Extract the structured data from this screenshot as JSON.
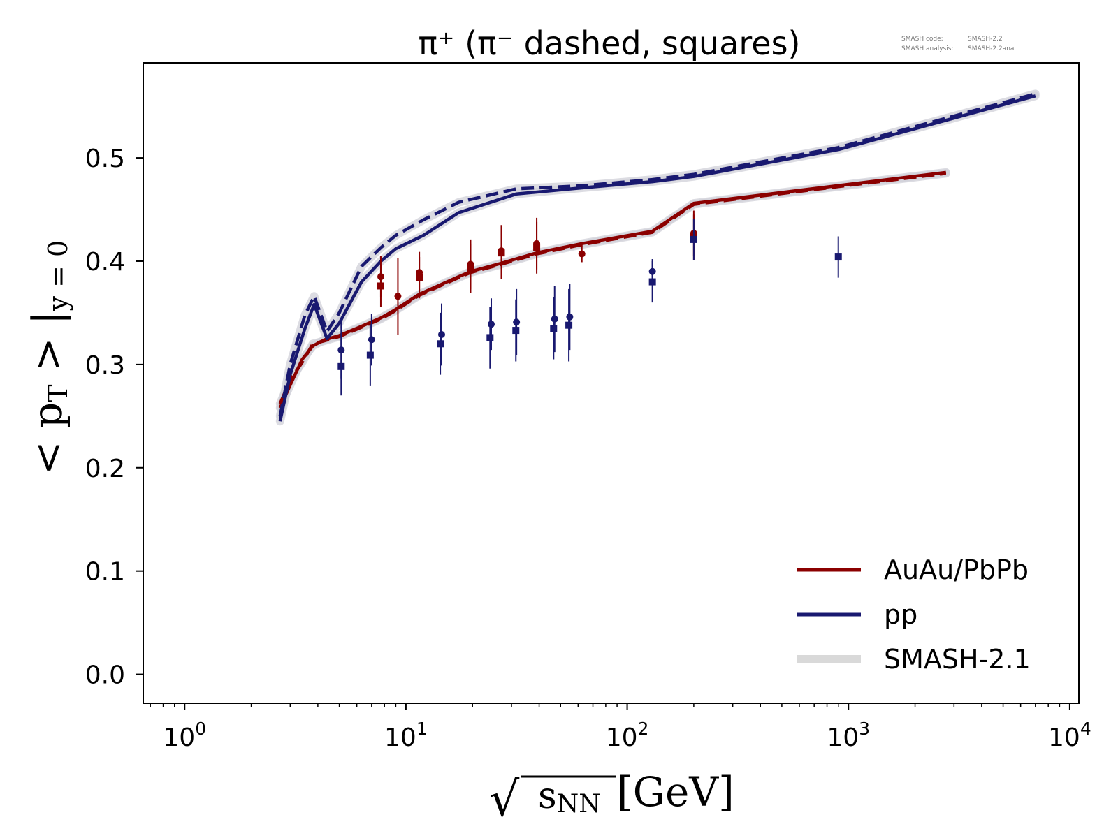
{
  "chart_data": {
    "type": "line",
    "title": "π⁺ (π⁻ dashed, squares)",
    "meta_text": {
      "line1_label": "SMASH code:",
      "line1_value": "SMASH-2.2",
      "line2_label": "SMASH analysis:",
      "line2_value": "SMASH-2.2ana"
    },
    "xlabel": {
      "radical": "√",
      "var": "s",
      "sub": "NN",
      "unit": "[GeV]"
    },
    "ylabel": {
      "open": "<",
      "var": "p",
      "sub": "T",
      "close": "> |",
      "sub2": "y = 0"
    },
    "x_scale": "log",
    "xlim": [
      0.65,
      11000
    ],
    "ylim": [
      -0.028,
      0.592
    ],
    "x_ticks": [
      {
        "value": 1,
        "base": "10",
        "exp": "0"
      },
      {
        "value": 10,
        "base": "10",
        "exp": "1"
      },
      {
        "value": 100,
        "base": "10",
        "exp": "2"
      },
      {
        "value": 1000,
        "base": "10",
        "exp": "3"
      },
      {
        "value": 10000,
        "base": "10",
        "exp": "4"
      }
    ],
    "y_ticks": [
      {
        "value": 0.0,
        "label": "0.0"
      },
      {
        "value": 0.1,
        "label": "0.1"
      },
      {
        "value": 0.2,
        "label": "0.2"
      },
      {
        "value": 0.3,
        "label": "0.3"
      },
      {
        "value": 0.4,
        "label": "0.4"
      },
      {
        "value": 0.5,
        "label": "0.5"
      }
    ],
    "grid": false,
    "legend_position": "bottom-right",
    "legend": [
      {
        "label": "AuAu/PbPb",
        "color": "#8b0000",
        "kind": "line"
      },
      {
        "label": "pp",
        "color": "#191970",
        "kind": "line"
      },
      {
        "label": "SMASH-2.1",
        "color": "#d9d9d9",
        "kind": "band"
      }
    ],
    "colors": {
      "auau": "#8b0000",
      "pp": "#191970",
      "smash21": "#d0d0d8"
    },
    "series": [
      {
        "id": "auau_piplus",
        "group": "AuAu/PbPb",
        "particle": "π⁺",
        "dashed": false,
        "color": "#8b0000",
        "x": [
          2.7,
          3.0,
          3.4,
          3.8,
          4.3,
          5.0,
          6.3,
          7.7,
          8.8,
          11.5,
          17.3,
          19.6,
          27,
          39,
          62.4,
          130,
          200,
          2760
        ],
        "y": [
          0.258,
          0.28,
          0.305,
          0.318,
          0.324,
          0.328,
          0.337,
          0.345,
          0.352,
          0.368,
          0.385,
          0.39,
          0.398,
          0.408,
          0.417,
          0.429,
          0.456,
          0.486
        ]
      },
      {
        "id": "auau_piminus",
        "group": "AuAu/PbPb",
        "particle": "π⁻",
        "dashed": true,
        "color": "#8b0000",
        "x": [
          2.7,
          3.0,
          3.4,
          3.8,
          4.3,
          5.0,
          6.3,
          7.7,
          8.8,
          11.5,
          17.3,
          19.6,
          27,
          39,
          62.4,
          130,
          200,
          2760
        ],
        "y": [
          0.262,
          0.285,
          0.302,
          0.32,
          0.323,
          0.327,
          0.336,
          0.344,
          0.351,
          0.367,
          0.384,
          0.389,
          0.397,
          0.407,
          0.416,
          0.428,
          0.455,
          0.485
        ]
      },
      {
        "id": "pp_piplus",
        "group": "pp",
        "particle": "π⁺",
        "dashed": false,
        "color": "#191970",
        "x": [
          2.7,
          3.0,
          3.5,
          3.85,
          4.4,
          5.0,
          6.3,
          7.7,
          9.0,
          12.0,
          17.3,
          31.5,
          62.4,
          130,
          200,
          900,
          7000
        ],
        "y": [
          0.245,
          0.29,
          0.335,
          0.358,
          0.325,
          0.34,
          0.38,
          0.4,
          0.412,
          0.425,
          0.447,
          0.465,
          0.471,
          0.477,
          0.482,
          0.508,
          0.56
        ]
      },
      {
        "id": "pp_piminus",
        "group": "pp",
        "particle": "π⁻",
        "dashed": true,
        "color": "#191970",
        "x": [
          2.7,
          3.0,
          3.5,
          3.85,
          4.4,
          5.0,
          6.3,
          7.7,
          9.0,
          12.0,
          17.3,
          31.5,
          62.4,
          130,
          200,
          900,
          7000
        ],
        "y": [
          0.25,
          0.3,
          0.348,
          0.366,
          0.332,
          0.35,
          0.395,
          0.413,
          0.425,
          0.44,
          0.457,
          0.47,
          0.473,
          0.479,
          0.484,
          0.51,
          0.562
        ]
      }
    ],
    "data_points": [
      {
        "group": "AuAu/PbPb",
        "marker": "circle",
        "x": 7.7,
        "y": 0.385,
        "yerr": 0.02
      },
      {
        "group": "AuAu/PbPb",
        "marker": "square",
        "x": 7.7,
        "y": 0.376,
        "yerr": 0.02
      },
      {
        "group": "AuAu/PbPb",
        "marker": "circle",
        "x": 9.2,
        "y": 0.366,
        "yerr": 0.037
      },
      {
        "group": "AuAu/PbPb",
        "marker": "circle",
        "x": 11.5,
        "y": 0.389,
        "yerr": 0.02
      },
      {
        "group": "AuAu/PbPb",
        "marker": "square",
        "x": 11.5,
        "y": 0.384,
        "yerr": 0.02
      },
      {
        "group": "AuAu/PbPb",
        "marker": "circle",
        "x": 19.6,
        "y": 0.397,
        "yerr": 0.024
      },
      {
        "group": "AuAu/PbPb",
        "marker": "square",
        "x": 19.6,
        "y": 0.393,
        "yerr": 0.024
      },
      {
        "group": "AuAu/PbPb",
        "marker": "circle",
        "x": 27,
        "y": 0.41,
        "yerr": 0.025
      },
      {
        "group": "AuAu/PbPb",
        "marker": "square",
        "x": 27,
        "y": 0.408,
        "yerr": 0.025
      },
      {
        "group": "AuAu/PbPb",
        "marker": "circle",
        "x": 39,
        "y": 0.417,
        "yerr": 0.025
      },
      {
        "group": "AuAu/PbPb",
        "marker": "square",
        "x": 39,
        "y": 0.413,
        "yerr": 0.025
      },
      {
        "group": "AuAu/PbPb",
        "marker": "circle",
        "x": 62.4,
        "y": 0.407,
        "yerr": 0.008
      },
      {
        "group": "AuAu/PbPb",
        "marker": "circle",
        "x": 200,
        "y": 0.427,
        "yerr": 0.022
      },
      {
        "group": "AuAu/PbPb",
        "marker": "square",
        "x": 200,
        "y": 0.423,
        "yerr": 0.022
      },
      {
        "group": "pp",
        "marker": "circle",
        "x": 5.1,
        "y": 0.314,
        "yerr": 0.028
      },
      {
        "group": "pp",
        "marker": "square",
        "x": 5.1,
        "y": 0.298,
        "yerr": 0.028
      },
      {
        "group": "pp",
        "marker": "circle",
        "x": 7.0,
        "y": 0.324,
        "yerr": 0.025
      },
      {
        "group": "pp",
        "marker": "square",
        "x": 6.9,
        "y": 0.309,
        "yerr": 0.03
      },
      {
        "group": "pp",
        "marker": "circle",
        "x": 14.5,
        "y": 0.329,
        "yerr": 0.03
      },
      {
        "group": "pp",
        "marker": "square",
        "x": 14.3,
        "y": 0.32,
        "yerr": 0.03
      },
      {
        "group": "pp",
        "marker": "circle",
        "x": 24.3,
        "y": 0.339,
        "yerr": 0.025
      },
      {
        "group": "pp",
        "marker": "square",
        "x": 24.0,
        "y": 0.326,
        "yerr": 0.03
      },
      {
        "group": "pp",
        "marker": "circle",
        "x": 31.6,
        "y": 0.341,
        "yerr": 0.032
      },
      {
        "group": "pp",
        "marker": "square",
        "x": 31.4,
        "y": 0.333,
        "yerr": 0.03
      },
      {
        "group": "pp",
        "marker": "circle",
        "x": 47,
        "y": 0.344,
        "yerr": 0.032
      },
      {
        "group": "pp",
        "marker": "square",
        "x": 46.5,
        "y": 0.335,
        "yerr": 0.03
      },
      {
        "group": "pp",
        "marker": "circle",
        "x": 55,
        "y": 0.346,
        "yerr": 0.032
      },
      {
        "group": "pp",
        "marker": "square",
        "x": 54.5,
        "y": 0.338,
        "yerr": 0.035
      },
      {
        "group": "pp",
        "marker": "circle",
        "x": 130,
        "y": 0.39,
        "yerr": 0.012
      },
      {
        "group": "pp",
        "marker": "square",
        "x": 130,
        "y": 0.38,
        "yerr": 0.02
      },
      {
        "group": "pp",
        "marker": "square",
        "x": 200,
        "y": 0.421,
        "yerr": 0.02
      },
      {
        "group": "pp",
        "marker": "square",
        "x": 900,
        "y": 0.404,
        "yerr": 0.02
      }
    ]
  }
}
